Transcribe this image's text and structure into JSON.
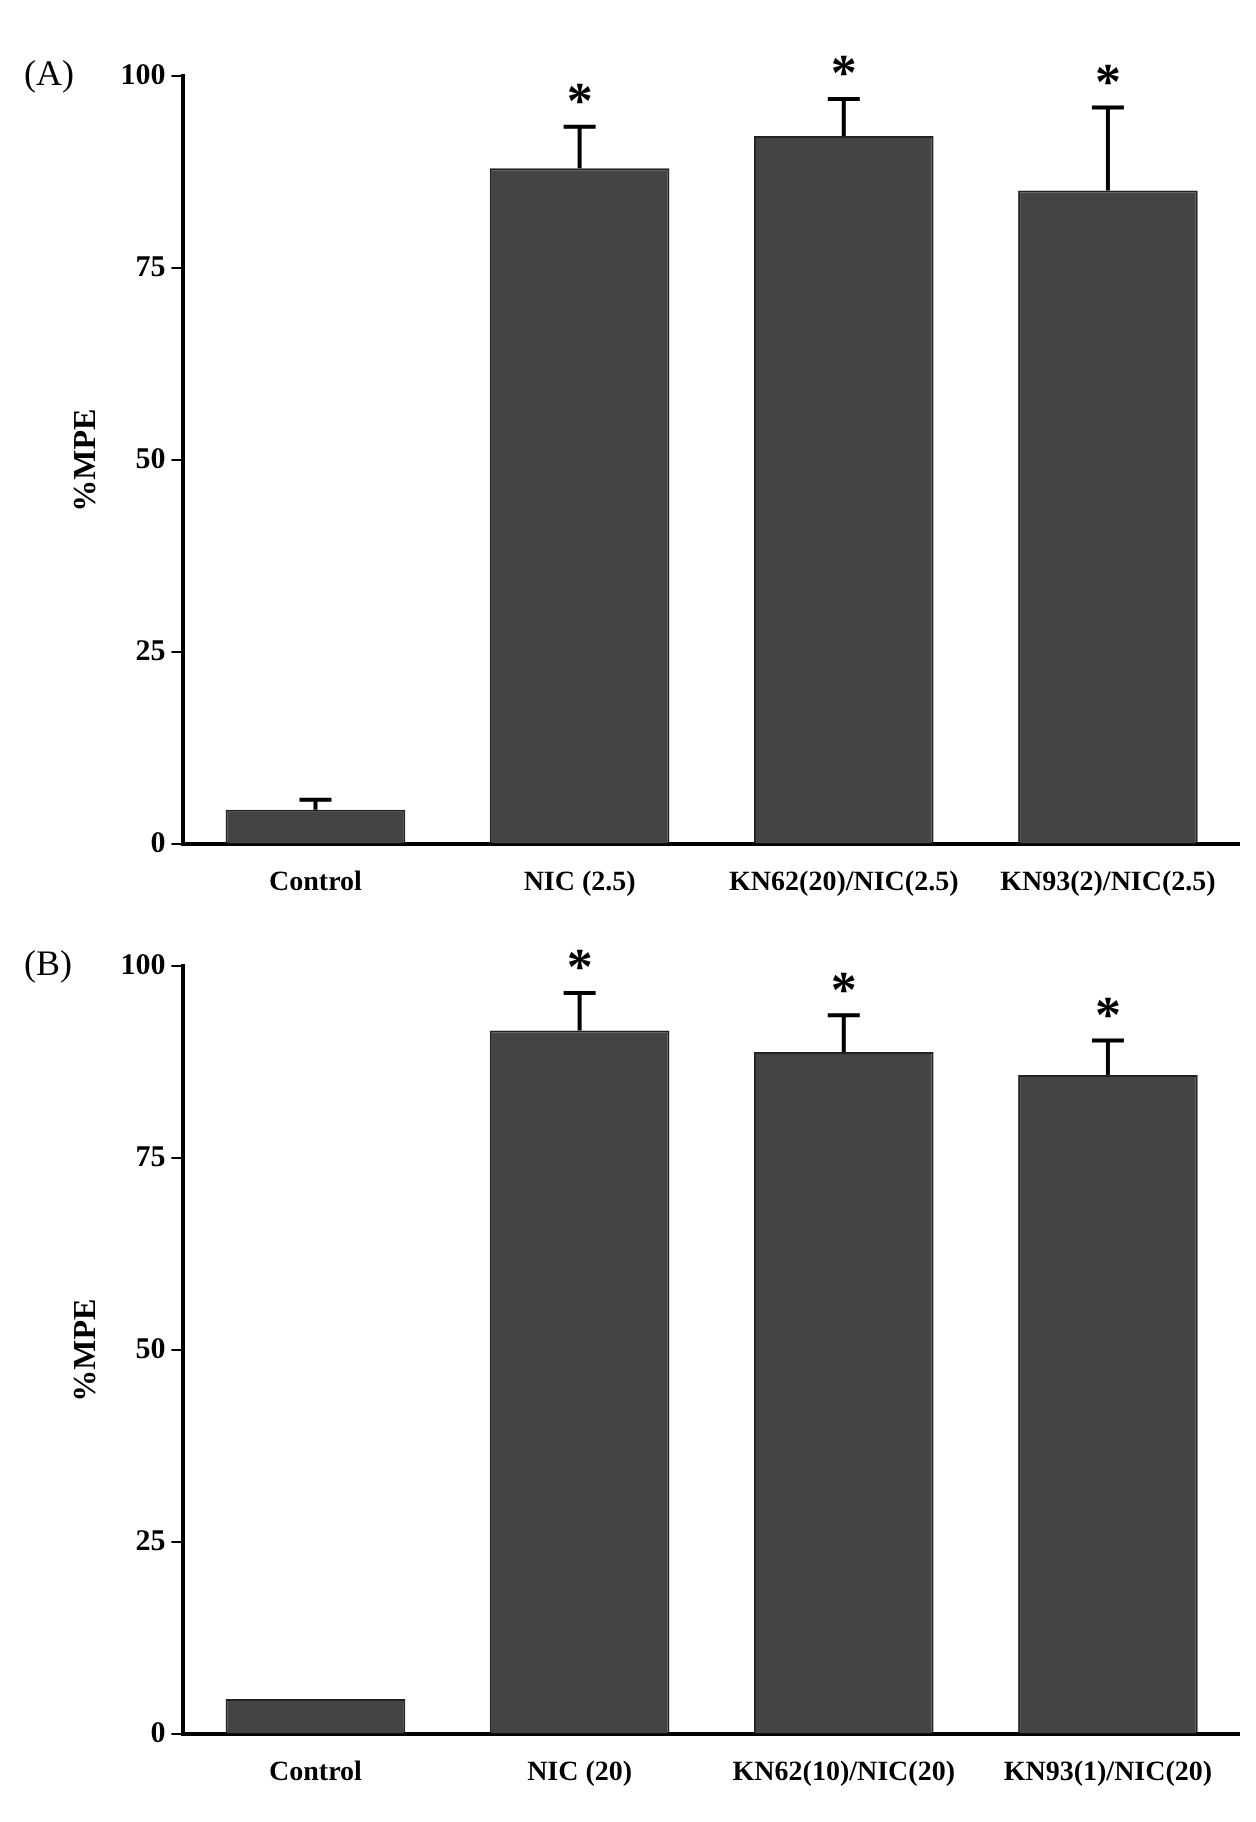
{
  "chart_data": [
    {
      "type": "bar",
      "title": "(A)",
      "ylabel": "%MPE",
      "categories": [
        "Control",
        "NIC (2.5)",
        "KN62(20)/NIC(2.5)",
        "KN93(2)/NIC(2.5)"
      ],
      "values": [
        4.5,
        88,
        92.2,
        85.1
      ],
      "errors": [
        [
          4.5,
          5.8
        ],
        [
          88,
          93.4
        ],
        [
          92.2,
          97
        ],
        [
          85.1,
          95.9
        ]
      ],
      "color": "#444444",
      "ylim": [
        0,
        100
      ],
      "yticks": [
        0,
        25,
        50,
        75,
        100
      ],
      "grid": false,
      "legend": false,
      "annotations": [
        {
          "text": "*",
          "x": "NIC (2.5)",
          "y": 93.4
        },
        {
          "text": "*",
          "x": "KN62(20)/NIC(2.5)",
          "y": 97
        },
        {
          "text": "*",
          "x": "KN93(2)/NIC(2.5)",
          "y": 95.9
        }
      ]
    },
    {
      "type": "bar",
      "title": "(B)",
      "ylabel": "%MPE",
      "categories": [
        "Control",
        "NIC (20)",
        "KN62(10)/NIC(20)",
        "KN93(1)/NIC(20)"
      ],
      "values": [
        4.6,
        91.6,
        88.8,
        85.8
      ],
      "errors": [
        null,
        [
          91.6,
          96.5
        ],
        [
          88.8,
          93.6
        ],
        [
          85.8,
          90.3
        ]
      ],
      "color": "#444444",
      "ylim": [
        0,
        100
      ],
      "yticks": [
        0,
        25,
        50,
        75,
        100
      ],
      "grid": false,
      "legend": false,
      "annotations": [
        {
          "text": "*",
          "x": "NIC (20)",
          "y": 96.5
        },
        {
          "text": "*",
          "x": "KN62(10)/NIC(20)",
          "y": 93.6
        },
        {
          "text": "*",
          "x": "KN93(1)/NIC(20)",
          "y": 90.3
        }
      ]
    }
  ]
}
